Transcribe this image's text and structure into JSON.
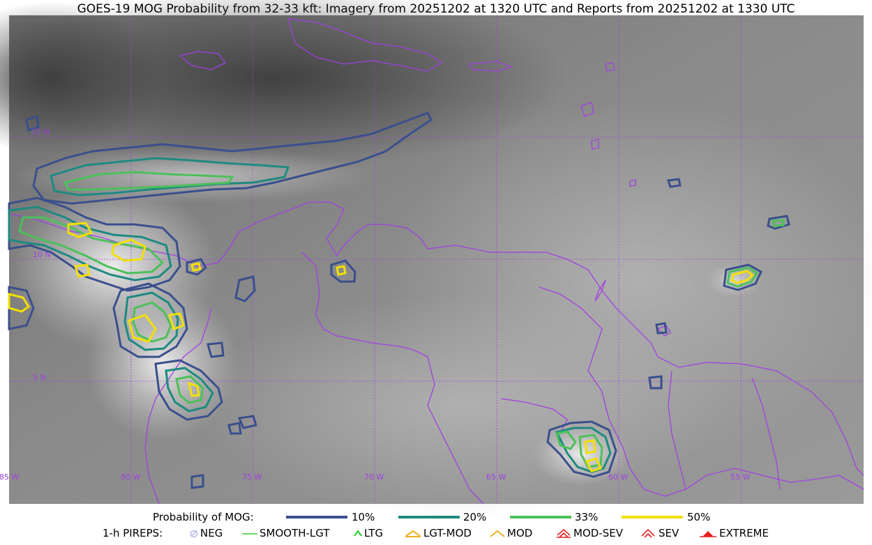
{
  "title": "GOES-19 MOG Probability from 32-33 kft: Imagery from 20251202 at 1320 UTC and Reports from 20251202 at 1330 UTC",
  "map": {
    "lat_labels": [
      "15 N",
      "10 N",
      "5 N"
    ],
    "lon_labels": [
      "85 W",
      "80 W",
      "75 W",
      "70 W",
      "65 W",
      "60 W",
      "55 W"
    ],
    "colors": {
      "border": "#a040e0",
      "grid": "#a040e0"
    }
  },
  "legend_probability": {
    "title": "Probability of MOG:",
    "items": [
      {
        "label": "10%",
        "color": "#3a4f8c"
      },
      {
        "label": "20%",
        "color": "#1e8a80"
      },
      {
        "label": "33%",
        "color": "#4cc05a"
      },
      {
        "label": "50%",
        "color": "#f2e000"
      }
    ]
  },
  "legend_pireps": {
    "title": "1-h PIREPS:",
    "items": [
      {
        "label": "NEG",
        "icon": "neg-icon",
        "color": "#b8b8f0"
      },
      {
        "label": "SMOOTH-LGT",
        "icon": "smooth-lgt-icon",
        "color": "#33cc33"
      },
      {
        "label": "LTG",
        "icon": "ltg-icon",
        "color": "#22cc22"
      },
      {
        "label": "LGT-MOD",
        "icon": "lgt-mod-icon",
        "color": "#f0b020"
      },
      {
        "label": "MOD",
        "icon": "mod-icon",
        "color": "#f0b020"
      },
      {
        "label": "MOD-SEV",
        "icon": "mod-sev-icon",
        "color": "#e82020"
      },
      {
        "label": "SEV",
        "icon": "sev-icon",
        "color": "#e82020"
      },
      {
        "label": "EXTREME",
        "icon": "extreme-icon",
        "color": "#e82020"
      }
    ]
  }
}
